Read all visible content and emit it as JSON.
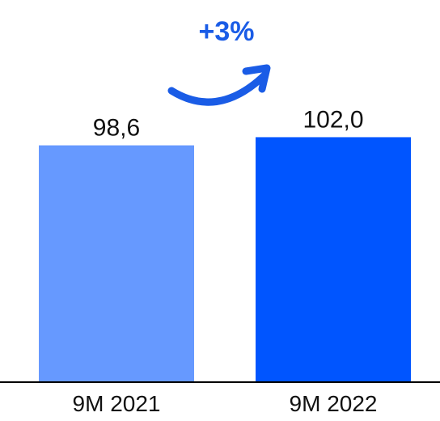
{
  "chart_data": {
    "type": "bar",
    "categories": [
      "9M 2021",
      "9M 2022"
    ],
    "values": [
      98.6,
      102.0
    ],
    "value_labels": [
      "98,6",
      "102,0"
    ],
    "bar_colors": [
      "#6699FF",
      "#0055FF"
    ],
    "ylim": [
      0,
      103.5
    ],
    "grid": false,
    "annotation": {
      "text": "+3%",
      "color": "#1A5CE6",
      "arrow": "curved-up-right-arrow"
    }
  },
  "colors": {
    "axis": "#000000",
    "text": "#111111"
  }
}
